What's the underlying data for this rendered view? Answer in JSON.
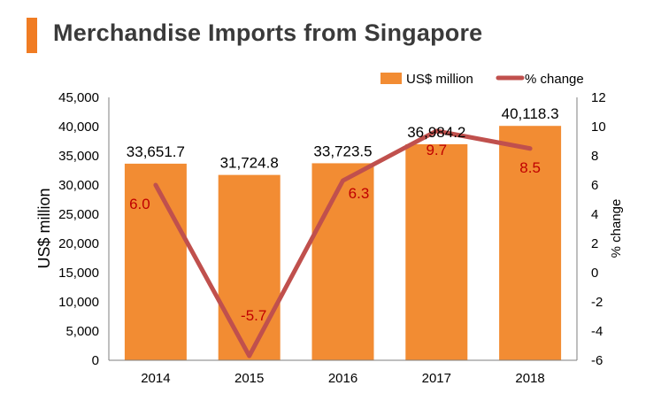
{
  "title": "Merchandise Imports from Singapore",
  "colors": {
    "accent": "#F07C23",
    "bar": "#F28C33",
    "line": "#C0504D",
    "line_label": "#C00000",
    "text": "#000000",
    "axis": "#7F7F7F"
  },
  "chart_data": {
    "type": "bar",
    "title": "Merchandise Imports from Singapore",
    "categories": [
      "2014",
      "2015",
      "2016",
      "2017",
      "2018"
    ],
    "series": [
      {
        "name": "US$ million",
        "type": "bar",
        "axis": "left",
        "values": [
          33651.7,
          31724.8,
          33723.5,
          36984.2,
          40118.3
        ],
        "labels": [
          "33,651.7",
          "31,724.8",
          "33,723.5",
          "36,984.2",
          "40,118.3"
        ]
      },
      {
        "name": "% change",
        "type": "line",
        "axis": "right",
        "values": [
          6.0,
          -5.7,
          6.3,
          9.7,
          8.5
        ],
        "labels": [
          "6.0",
          "-5.7",
          "6.3",
          "9.7",
          "8.5"
        ]
      }
    ],
    "ylabel": "US$ million",
    "y2label": "% change",
    "ylim": [
      0,
      45000
    ],
    "y2lim": [
      -6,
      12
    ],
    "yticks": [
      "0",
      "5,000",
      "10,000",
      "15,000",
      "20,000",
      "25,000",
      "30,000",
      "35,000",
      "40,000",
      "45,000"
    ],
    "y2ticks": [
      "-6",
      "-4",
      "-2",
      "0",
      "2",
      "4",
      "6",
      "8",
      "10",
      "12"
    ],
    "legend": "top-right",
    "grid": false
  }
}
